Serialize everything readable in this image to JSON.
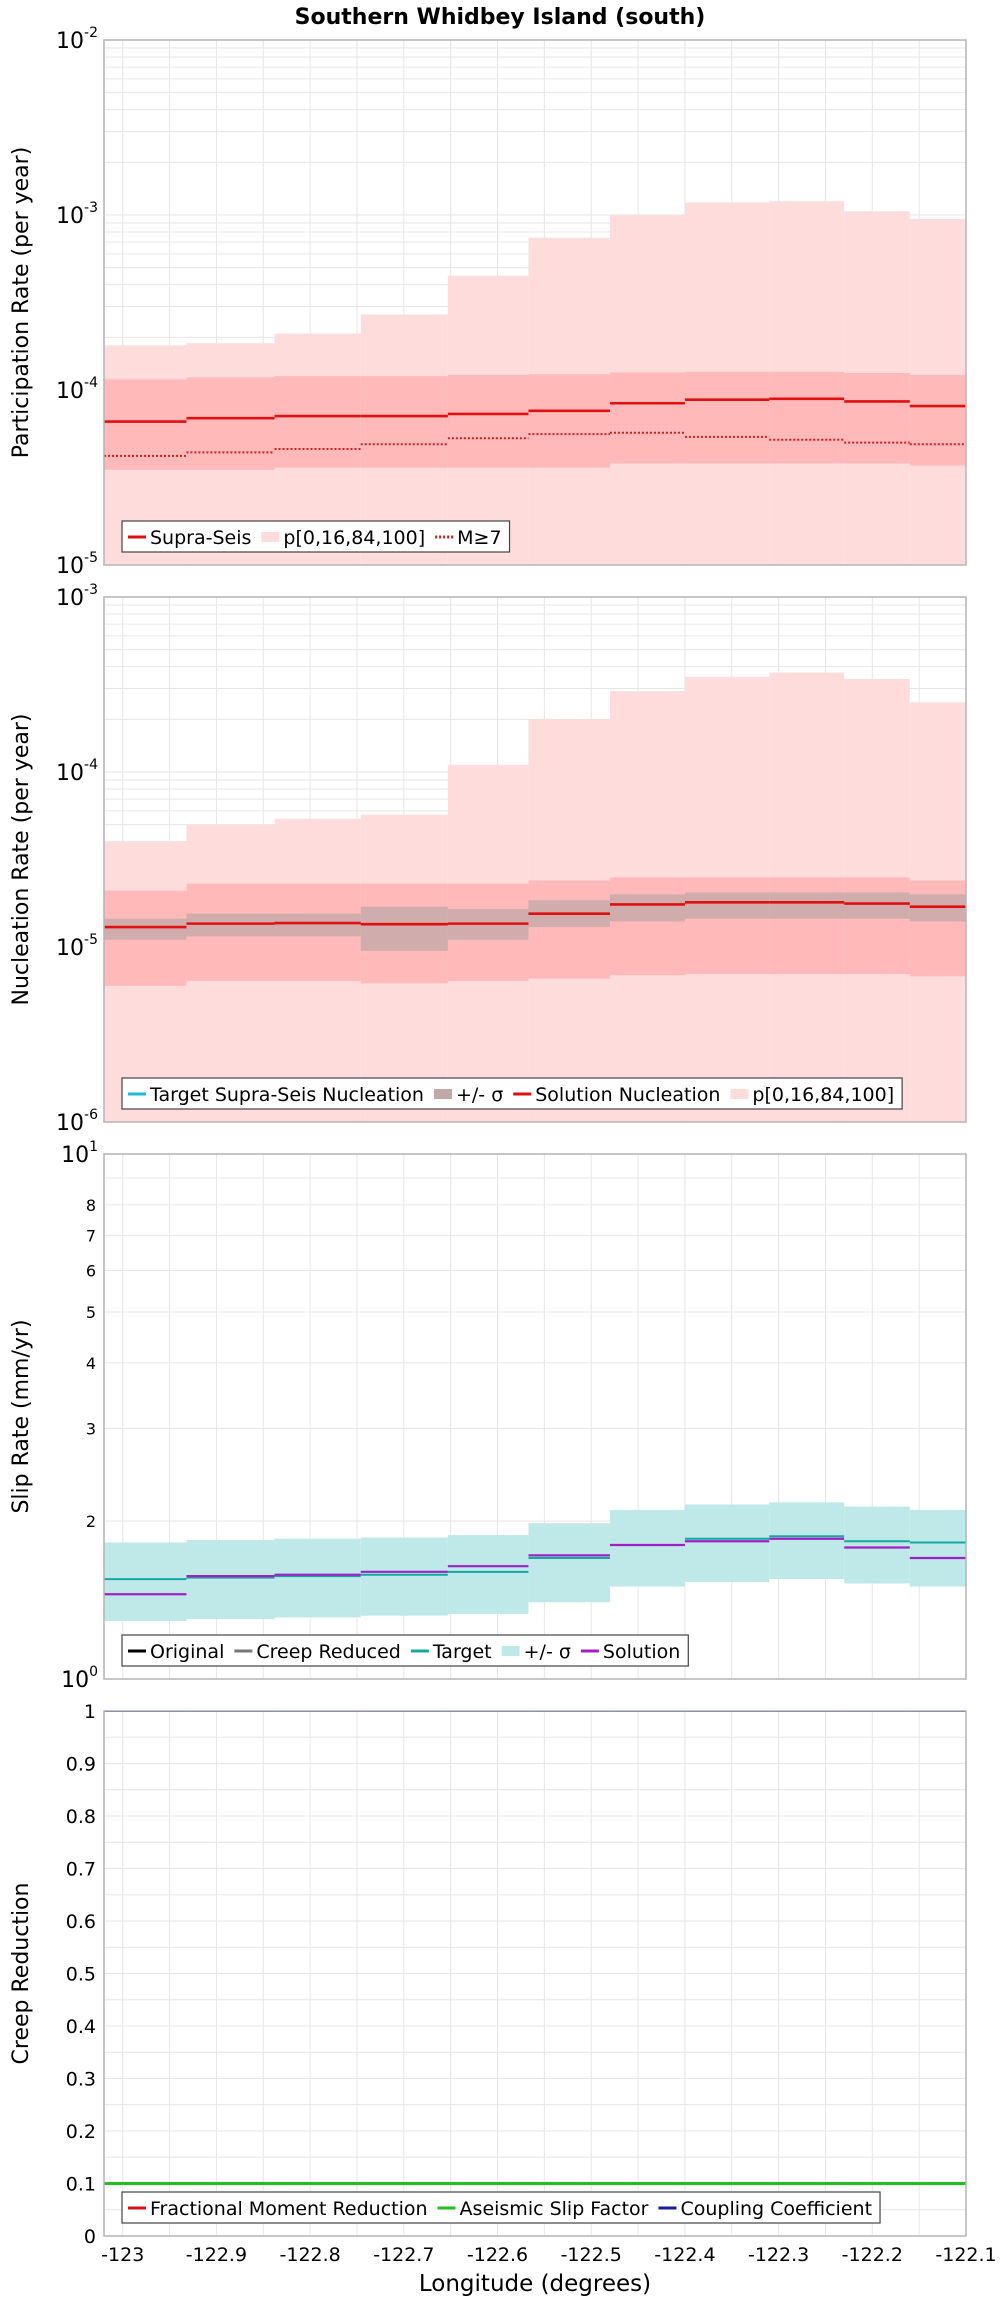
{
  "chart_data": [
    {
      "type": "line",
      "subtype": "step",
      "title": "Southern Whidbey Island (south)",
      "ylabel": "Participation Rate (per year)",
      "yscale": "log",
      "ylim": [
        1e-05,
        0.01
      ],
      "xlim": [
        -123.02,
        -122.1
      ],
      "bin_edges": [
        -123.02,
        -122.932,
        -122.838,
        -122.746,
        -122.653,
        -122.567,
        -122.48,
        -122.4,
        -122.31,
        -122.23,
        -122.16,
        -122.1
      ],
      "series": [
        {
          "name": "p[0,16,84,100] outer",
          "kind": "band",
          "color": "#ffdcdc",
          "low": [
            1e-05,
            1e-05,
            1e-05,
            1e-05,
            1e-05,
            1e-05,
            1e-05,
            1e-05,
            1e-05,
            1e-05,
            1e-05
          ],
          "high": [
            0.00018,
            0.000185,
            0.00021,
            0.00027,
            0.00045,
            0.00074,
            0.001,
            0.00118,
            0.0012,
            0.00105,
            0.00095
          ]
        },
        {
          "name": "p[0,16,84,100] inner",
          "kind": "band",
          "color": "#ffb9b9",
          "low": [
            3.5e-05,
            3.5e-05,
            3.6e-05,
            3.6e-05,
            3.6e-05,
            3.6e-05,
            3.8e-05,
            3.8e-05,
            3.8e-05,
            3.8e-05,
            3.7e-05
          ],
          "high": [
            0.000115,
            0.000118,
            0.00012,
            0.00012,
            0.000122,
            0.000123,
            0.000126,
            0.000127,
            0.000127,
            0.000125,
            0.000122
          ]
        },
        {
          "name": "Supra-Seis",
          "kind": "step",
          "color": "#e01010",
          "width": 2.6,
          "values": [
            6.6e-05,
            6.9e-05,
            7.1e-05,
            7.1e-05,
            7.3e-05,
            7.6e-05,
            8.4e-05,
            8.8e-05,
            8.9e-05,
            8.6e-05,
            8.1e-05
          ]
        },
        {
          "name": "M≥7",
          "kind": "step",
          "color": "#d21e1e",
          "width": 2,
          "dash": "2,2",
          "values": [
            4.2e-05,
            4.4e-05,
            4.6e-05,
            4.9e-05,
            5.3e-05,
            5.6e-05,
            5.7e-05,
            5.4e-05,
            5.2e-05,
            5e-05,
            4.9e-05
          ]
        }
      ],
      "legend": [
        "Supra-Seis",
        "p[0,16,84,100]",
        "M≥7"
      ],
      "legend_position": "lower-left"
    },
    {
      "type": "line",
      "subtype": "step",
      "title": "",
      "ylabel": "Nucleation Rate (per year)",
      "yscale": "log",
      "ylim": [
        1e-06,
        0.001
      ],
      "xlim": [
        -123.02,
        -122.1
      ],
      "bin_edges": [
        -123.02,
        -122.932,
        -122.838,
        -122.746,
        -122.653,
        -122.567,
        -122.48,
        -122.4,
        -122.31,
        -122.23,
        -122.16,
        -122.1
      ],
      "series": [
        {
          "name": "p[0,16,84,100] outer",
          "kind": "band",
          "color": "#ffdcdc",
          "low": [
            1e-06,
            1e-06,
            1e-06,
            1e-06,
            1e-06,
            1e-06,
            1e-06,
            1e-06,
            1e-06,
            1e-06,
            1e-06
          ],
          "high": [
            4e-05,
            5e-05,
            5.4e-05,
            5.7e-05,
            0.00011,
            0.0002,
            0.00029,
            0.00035,
            0.00037,
            0.00034,
            0.00025
          ]
        },
        {
          "name": "p[0,16,84,100] inner",
          "kind": "band",
          "color": "#ffb9b9",
          "low": [
            6e-06,
            6.4e-06,
            6.4e-06,
            6.2e-06,
            6.4e-06,
            6.6e-06,
            6.9e-06,
            7e-06,
            7e-06,
            7e-06,
            6.8e-06
          ],
          "high": [
            2.1e-05,
            2.3e-05,
            2.3e-05,
            2.3e-05,
            2.3e-05,
            2.4e-05,
            2.5e-05,
            2.5e-05,
            2.5e-05,
            2.5e-05,
            2.4e-05
          ]
        },
        {
          "name": "+/- σ",
          "kind": "band",
          "color": "#c0a8a8",
          "opacity": 0.75,
          "low": [
            1.1e-05,
            1.15e-05,
            1.15e-05,
            9.5e-06,
            1.1e-05,
            1.3e-05,
            1.4e-05,
            1.45e-05,
            1.45e-05,
            1.45e-05,
            1.4e-05
          ],
          "high": [
            1.45e-05,
            1.55e-05,
            1.55e-05,
            1.7e-05,
            1.65e-05,
            1.85e-05,
            2e-05,
            2.05e-05,
            2.05e-05,
            2.05e-05,
            2e-05
          ]
        },
        {
          "name": "Target Supra-Seis Nucleation",
          "kind": "step",
          "color": "#1ebbd7",
          "width": 1.5,
          "values": [
            1.3e-05,
            1.36e-05,
            1.37e-05,
            1.35e-05,
            1.36e-05,
            1.55e-05,
            1.75e-05,
            1.8e-05,
            1.8e-05,
            1.77e-05,
            1.7e-05
          ]
        },
        {
          "name": "Solution Nucleation",
          "kind": "step",
          "color": "#e01010",
          "width": 2.6,
          "values": [
            1.3e-05,
            1.36e-05,
            1.37e-05,
            1.35e-05,
            1.36e-05,
            1.55e-05,
            1.75e-05,
            1.8e-05,
            1.8e-05,
            1.77e-05,
            1.7e-05
          ]
        }
      ],
      "legend": [
        "Target Supra-Seis Nucleation",
        "+/- σ",
        "Solution Nucleation",
        "p[0,16,84,100]"
      ],
      "legend_position": "lower-left"
    },
    {
      "type": "line",
      "subtype": "step",
      "title": "",
      "ylabel": "Slip Rate (mm/yr)",
      "yscale": "log",
      "ylim": [
        1,
        10
      ],
      "yticks_minor_labels": [
        "2",
        "3",
        "4",
        "5",
        "6",
        "7",
        "8"
      ],
      "xlim": [
        -123.02,
        -122.1
      ],
      "bin_edges": [
        -123.02,
        -122.932,
        -122.838,
        -122.746,
        -122.653,
        -122.567,
        -122.48,
        -122.4,
        -122.31,
        -122.23,
        -122.16,
        -122.1
      ],
      "series": [
        {
          "name": "+/- σ",
          "kind": "band",
          "color": "#bfe9e9",
          "low": [
            1.29,
            1.3,
            1.31,
            1.32,
            1.33,
            1.4,
            1.5,
            1.53,
            1.55,
            1.52,
            1.5
          ],
          "high": [
            1.82,
            1.84,
            1.85,
            1.86,
            1.88,
            1.98,
            2.1,
            2.15,
            2.17,
            2.13,
            2.1
          ]
        },
        {
          "name": "Target",
          "kind": "step",
          "color": "#16a8a0",
          "width": 2,
          "values": [
            1.55,
            1.56,
            1.57,
            1.58,
            1.6,
            1.7,
            1.8,
            1.85,
            1.87,
            1.83,
            1.82
          ]
        },
        {
          "name": "Solution",
          "kind": "step",
          "color": "#a020c8",
          "width": 2.2,
          "values": [
            1.45,
            1.57,
            1.58,
            1.6,
            1.64,
            1.72,
            1.8,
            1.83,
            1.85,
            1.78,
            1.7
          ]
        }
      ],
      "legend": [
        "Original",
        "Creep Reduced",
        "Target",
        "+/- σ",
        "Solution"
      ],
      "legend_colors": [
        "#000000",
        "#777777",
        "#16a8a0",
        "#bfe9e9",
        "#a020c8"
      ],
      "legend_position": "lower-left"
    },
    {
      "type": "line",
      "subtype": "step",
      "title": "",
      "ylabel": "Creep Reduction",
      "yscale": "linear",
      "ylim": [
        0,
        1
      ],
      "yticks": [
        "0",
        "0.1",
        "0.2",
        "0.3",
        "0.4",
        "0.5",
        "0.6",
        "0.7",
        "0.8",
        "0.9",
        "1"
      ],
      "xlabel": "Longitude (degrees)",
      "xlim": [
        -123.02,
        -122.1
      ],
      "xticks": [
        "-123",
        "-122.9",
        "-122.8",
        "-122.7",
        "-122.6",
        "-122.5",
        "-122.4",
        "-122.3",
        "-122.2",
        "-122.1"
      ],
      "series": [
        {
          "name": "Fractional Moment Reduction",
          "kind": "step",
          "color": "#e01010",
          "width": 2.5,
          "values": [
            0.1,
            0.1,
            0.1,
            0.1,
            0.1,
            0.1,
            0.1,
            0.1,
            0.1,
            0.1,
            0.1
          ]
        },
        {
          "name": "Aseismic Slip Factor",
          "kind": "step",
          "color": "#20c020",
          "width": 3,
          "values": [
            0.1,
            0.1,
            0.1,
            0.1,
            0.1,
            0.1,
            0.1,
            0.1,
            0.1,
            0.1,
            0.1
          ]
        },
        {
          "name": "Coupling Coefficient",
          "kind": "step",
          "color": "#1a1aa0",
          "width": 2,
          "values": [
            1,
            1,
            1,
            1,
            1,
            1,
            1,
            1,
            1,
            1,
            1
          ]
        }
      ],
      "bin_edges": [
        -123.02,
        -122.932,
        -122.838,
        -122.746,
        -122.653,
        -122.567,
        -122.48,
        -122.4,
        -122.31,
        -122.23,
        -122.16,
        -122.1
      ],
      "legend": [
        "Fractional Moment Reduction",
        "Aseismic Slip Factor",
        "Coupling Coefficient"
      ],
      "legend_position": "lower-left"
    }
  ]
}
